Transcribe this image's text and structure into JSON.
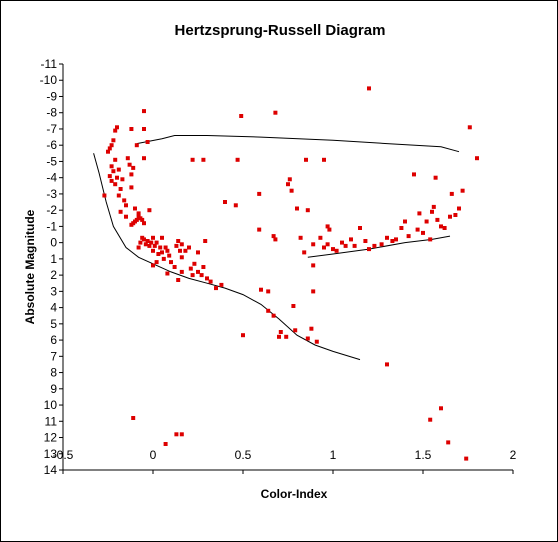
{
  "chart_data": {
    "type": "scatter",
    "title": "Hertzsprung-Russell Diagram",
    "xlabel": "Color-Index",
    "ylabel": "Absolute Magnitude",
    "xlim": [
      -0.5,
      2
    ],
    "ylim": [
      14,
      -11
    ],
    "y_inverted": true,
    "grid": false,
    "x_ticks": [
      -0.5,
      0,
      0.5,
      1,
      1.5,
      2
    ],
    "x_tick_labels": [
      "-0.5",
      "0",
      "0.5",
      "1",
      "1.5",
      "2"
    ],
    "y_ticks": [
      -11,
      -10,
      -9,
      -8,
      -7,
      -6,
      -5,
      -4,
      -3,
      -2,
      -1,
      0,
      1,
      2,
      3,
      4,
      5,
      6,
      7,
      8,
      9,
      10,
      11,
      12,
      13,
      14
    ],
    "y_tick_labels": [
      "-11",
      "-10",
      "-9",
      "-8",
      "-7",
      "-6",
      "-5",
      "-4",
      "-3",
      "-2",
      "-1",
      "0",
      "1",
      "2",
      "3",
      "4",
      "5",
      "6",
      "7",
      "8",
      "9",
      "10",
      "11",
      "12",
      "13",
      "14"
    ],
    "marker_color": "#dd0000",
    "line_color": "#000000",
    "points": [
      [
        -0.27,
        -2.9
      ],
      [
        -0.25,
        -5.6
      ],
      [
        -0.24,
        -5.8
      ],
      [
        -0.23,
        -6.0
      ],
      [
        -0.22,
        -6.3
      ],
      [
        -0.21,
        -6.9
      ],
      [
        -0.2,
        -7.1
      ],
      [
        -0.23,
        -4.7
      ],
      [
        -0.24,
        -4.1
      ],
      [
        -0.23,
        -3.8
      ],
      [
        -0.22,
        -4.4
      ],
      [
        -0.21,
        -3.6
      ],
      [
        -0.2,
        -4.0
      ],
      [
        -0.21,
        -5.1
      ],
      [
        -0.19,
        -4.5
      ],
      [
        -0.18,
        -3.3
      ],
      [
        -0.19,
        -2.9
      ],
      [
        -0.17,
        -3.9
      ],
      [
        -0.16,
        -2.6
      ],
      [
        -0.15,
        -2.3
      ],
      [
        -0.14,
        -5.2
      ],
      [
        -0.13,
        -4.8
      ],
      [
        -0.12,
        -4.2
      ],
      [
        -0.11,
        -4.6
      ],
      [
        -0.12,
        -3.4
      ],
      [
        -0.11,
        -1.2
      ],
      [
        -0.12,
        -1.1
      ],
      [
        -0.1,
        -1.3
      ],
      [
        -0.09,
        -1.4
      ],
      [
        -0.08,
        -1.6
      ],
      [
        -0.07,
        -1.5
      ],
      [
        -0.06,
        -1.4
      ],
      [
        -0.05,
        -1.2
      ],
      [
        -0.1,
        -2.1
      ],
      [
        -0.08,
        -1.8
      ],
      [
        -0.18,
        -1.9
      ],
      [
        -0.15,
        -1.6
      ],
      [
        -0.12,
        -7.0
      ],
      [
        -0.09,
        -6.0
      ],
      [
        -0.05,
        -8.1
      ],
      [
        -0.05,
        -7.0
      ],
      [
        -0.03,
        -6.2
      ],
      [
        -0.02,
        -2.0
      ],
      [
        -0.05,
        -5.2
      ],
      [
        -0.06,
        -0.3
      ],
      [
        -0.07,
        0.0
      ],
      [
        -0.08,
        0.3
      ],
      [
        -0.05,
        -0.2
      ],
      [
        -0.04,
        0.1
      ],
      [
        -0.03,
        -0.1
      ],
      [
        -0.02,
        0.2
      ],
      [
        -0.01,
        0.0
      ],
      [
        0.0,
        -0.3
      ],
      [
        0.0,
        0.5
      ],
      [
        0.01,
        0.2
      ],
      [
        0.02,
        0.0
      ],
      [
        0.03,
        0.7
      ],
      [
        0.04,
        0.3
      ],
      [
        0.05,
        0.6
      ],
      [
        0.06,
        1.0
      ],
      [
        0.05,
        -0.3
      ],
      [
        0.07,
        0.3
      ],
      [
        0.08,
        0.5
      ],
      [
        0.09,
        0.8
      ],
      [
        0.1,
        1.2
      ],
      [
        0.0,
        1.4
      ],
      [
        0.02,
        1.2
      ],
      [
        0.08,
        1.9
      ],
      [
        0.12,
        1.5
      ],
      [
        0.14,
        2.3
      ],
      [
        0.16,
        1.8
      ],
      [
        0.13,
        0.2
      ],
      [
        0.15,
        0.5
      ],
      [
        0.16,
        0.9
      ],
      [
        0.14,
        -0.1
      ],
      [
        0.16,
        0.1
      ],
      [
        0.18,
        0.5
      ],
      [
        0.21,
        1.6
      ],
      [
        0.22,
        2.0
      ],
      [
        0.23,
        1.3
      ],
      [
        0.25,
        1.8
      ],
      [
        0.27,
        2.0
      ],
      [
        0.28,
        1.5
      ],
      [
        0.3,
        2.2
      ],
      [
        0.32,
        2.4
      ],
      [
        0.35,
        2.8
      ],
      [
        0.38,
        2.6
      ],
      [
        0.2,
        0.3
      ],
      [
        0.25,
        0.6
      ],
      [
        0.29,
        -0.1
      ],
      [
        0.22,
        -5.1
      ],
      [
        0.28,
        -5.1
      ],
      [
        0.4,
        -2.5
      ],
      [
        0.46,
        -2.3
      ],
      [
        0.47,
        -5.1
      ],
      [
        0.49,
        -7.8
      ],
      [
        0.5,
        5.7
      ],
      [
        0.59,
        -3.0
      ],
      [
        0.59,
        -0.8
      ],
      [
        0.6,
        2.9
      ],
      [
        0.64,
        3.0
      ],
      [
        0.64,
        4.2
      ],
      [
        0.67,
        4.5
      ],
      [
        0.67,
        -0.4
      ],
      [
        0.68,
        -0.2
      ],
      [
        0.68,
        -8.0
      ],
      [
        0.7,
        5.8
      ],
      [
        0.71,
        5.5
      ],
      [
        0.74,
        5.8
      ],
      [
        0.75,
        -3.6
      ],
      [
        0.76,
        -3.9
      ],
      [
        0.77,
        -3.2
      ],
      [
        0.78,
        3.9
      ],
      [
        0.79,
        5.4
      ],
      [
        0.8,
        -2.1
      ],
      [
        0.82,
        -0.3
      ],
      [
        0.84,
        0.6
      ],
      [
        0.85,
        -5.1
      ],
      [
        0.86,
        -2.0
      ],
      [
        0.86,
        5.9
      ],
      [
        0.88,
        5.3
      ],
      [
        0.89,
        0.1
      ],
      [
        0.89,
        1.4
      ],
      [
        0.91,
        6.1
      ],
      [
        0.93,
        -0.3
      ],
      [
        0.95,
        0.3
      ],
      [
        0.95,
        -5.1
      ],
      [
        0.97,
        -1.0
      ],
      [
        0.97,
        0.1
      ],
      [
        0.98,
        -0.8
      ],
      [
        1.0,
        0.4
      ],
      [
        1.02,
        0.5
      ],
      [
        1.05,
        0.0
      ],
      [
        1.07,
        0.2
      ],
      [
        1.1,
        -0.2
      ],
      [
        1.12,
        0.2
      ],
      [
        1.15,
        -0.9
      ],
      [
        1.18,
        -0.1
      ],
      [
        1.2,
        0.4
      ],
      [
        1.2,
        -9.5
      ],
      [
        1.23,
        0.2
      ],
      [
        1.27,
        0.1
      ],
      [
        1.3,
        -0.3
      ],
      [
        1.33,
        -0.1
      ],
      [
        1.35,
        -0.2
      ],
      [
        1.38,
        -0.9
      ],
      [
        1.4,
        -1.3
      ],
      [
        1.42,
        -0.4
      ],
      [
        1.45,
        -4.2
      ],
      [
        1.47,
        -0.8
      ],
      [
        1.48,
        -1.8
      ],
      [
        1.5,
        -0.6
      ],
      [
        1.52,
        -1.3
      ],
      [
        1.54,
        -0.2
      ],
      [
        1.55,
        -1.9
      ],
      [
        1.56,
        -2.2
      ],
      [
        1.57,
        -4.0
      ],
      [
        1.58,
        -1.4
      ],
      [
        1.6,
        -1.0
      ],
      [
        1.6,
        10.2
      ],
      [
        1.62,
        -0.9
      ],
      [
        1.64,
        12.3
      ],
      [
        1.65,
        -1.6
      ],
      [
        1.66,
        -3.0
      ],
      [
        1.68,
        -1.7
      ],
      [
        1.7,
        -2.1
      ],
      [
        1.72,
        -3.2
      ],
      [
        1.74,
        13.3
      ],
      [
        1.76,
        -7.1
      ],
      [
        1.8,
        -5.2
      ],
      [
        -0.11,
        10.8
      ],
      [
        0.07,
        12.4
      ],
      [
        0.13,
        11.8
      ],
      [
        0.16,
        11.8
      ],
      [
        1.3,
        7.5
      ],
      [
        1.54,
        10.9
      ],
      [
        0.89,
        3.0
      ]
    ],
    "curves": [
      {
        "points": [
          [
            -0.33,
            -5.5
          ],
          [
            -0.3,
            -4.3
          ],
          [
            -0.26,
            -2.5
          ],
          [
            -0.22,
            -1.0
          ],
          [
            -0.15,
            0.3
          ],
          [
            -0.08,
            0.9
          ],
          [
            0.0,
            1.3
          ],
          [
            0.1,
            1.8
          ],
          [
            0.2,
            2.2
          ],
          [
            0.3,
            2.5
          ],
          [
            0.4,
            2.8
          ],
          [
            0.5,
            3.2
          ],
          [
            0.6,
            3.8
          ],
          [
            0.7,
            4.7
          ],
          [
            0.8,
            5.7
          ],
          [
            0.9,
            6.3
          ],
          [
            1.0,
            6.7
          ],
          [
            1.15,
            7.2
          ]
        ]
      },
      {
        "points": [
          [
            -0.09,
            -6.1
          ],
          [
            0.05,
            -6.4
          ],
          [
            0.12,
            -6.6
          ],
          [
            0.3,
            -6.6
          ],
          [
            0.6,
            -6.5
          ],
          [
            1.0,
            -6.3
          ],
          [
            1.3,
            -6.1
          ],
          [
            1.6,
            -5.9
          ],
          [
            1.7,
            -5.6
          ]
        ]
      },
      {
        "points": [
          [
            0.86,
            0.9
          ],
          [
            1.0,
            0.7
          ],
          [
            1.2,
            0.4
          ],
          [
            1.4,
            0.0
          ],
          [
            1.55,
            -0.2
          ],
          [
            1.65,
            -0.4
          ]
        ]
      }
    ]
  }
}
